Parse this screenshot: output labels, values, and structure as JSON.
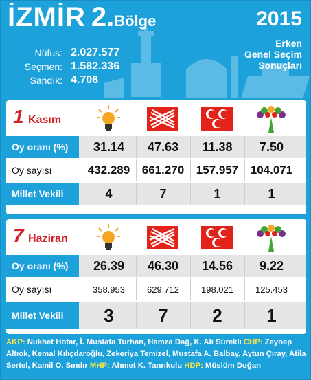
{
  "header": {
    "city": "İZMİR",
    "region_number": "2.",
    "region_word": "Bölge",
    "year": "2015",
    "subtitle_lines": [
      "Erken",
      "Genel Seçim",
      "Sonuçları"
    ],
    "stats": [
      {
        "label": "Nüfus:",
        "value": "2.027.577"
      },
      {
        "label": "Seçmen:",
        "value": "1.582.336"
      },
      {
        "label": "Sandık:",
        "value": "4.706"
      }
    ]
  },
  "parties": [
    {
      "icon": "akp-lightbulb-icon",
      "color": "#f5a623"
    },
    {
      "icon": "chp-six-arrows-icon",
      "color": "#e2231a"
    },
    {
      "icon": "mhp-three-crescents-icon",
      "color": "#e2231a"
    },
    {
      "icon": "hdp-tree-icon",
      "color": "#7a2f8a"
    }
  ],
  "november": {
    "day": "1",
    "month": "Kasım",
    "vote_share_label": "Oy oranı (%)",
    "vote_share": [
      "31.14",
      "47.63",
      "11.38",
      "7.50"
    ],
    "vote_count_label": "Oy sayısı",
    "vote_count": [
      "432.289",
      "661.270",
      "157.957",
      "104.071"
    ],
    "mp_label": "Millet Vekili",
    "mps": [
      "4",
      "7",
      "1",
      "1"
    ]
  },
  "june": {
    "day": "7",
    "month": "Haziran",
    "vote_share_label": "Oy oranı (%)",
    "vote_share": [
      "26.39",
      "46.30",
      "14.56",
      "9.22"
    ],
    "vote_count_label": "Oy sayısı",
    "vote_count": [
      "358.953",
      "629.712",
      "198.021",
      "125.453"
    ],
    "mp_label": "Millet Vekili",
    "mps": [
      "3",
      "7",
      "2",
      "1"
    ]
  },
  "footer": {
    "akp_tag": "AKP:",
    "akp_names": "Nukhet Hotar, İ. Mustafa Turhan, Hamza Dağ, K. Ali Sürekli",
    "chp_tag": "CHP:",
    "chp_names": "Zeynep Altıok, Kemal Kılıçdaroğlu, Zekeriya Temizel, Mustafa A. Balbay, Aytun Çıray, Atila Sertel, Kamil O. Sındır",
    "mhp_tag": "MHP:",
    "mhp_names": "Ahmet K. Tanrıkulu",
    "hdp_tag": "HDP:",
    "hdp_names": "Müslüm Doğan"
  },
  "colors": {
    "background": "#1da1db",
    "accent_red": "#d1232a",
    "footer_party": "#f5e44a"
  }
}
